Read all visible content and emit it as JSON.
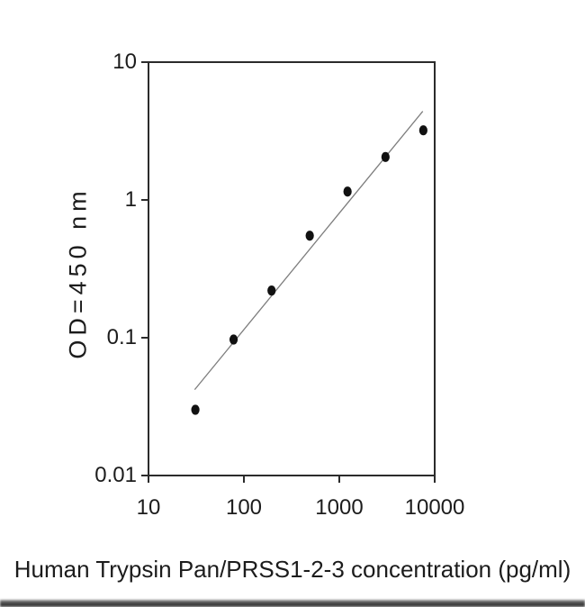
{
  "figure": {
    "background_color": "#ffffff",
    "text_color": "#1c1c1c",
    "axis_color": "#2b2b2b",
    "point_color": "#111111",
    "trend_line_color": "#7d7d7d"
  },
  "chart_data": {
    "type": "scatter",
    "title": "",
    "xlabel": "Human Trypsin Pan/PRSS1-2-3 concentration (pg/ml)",
    "ylabel": "OD=450 nm",
    "x_scale": "log",
    "y_scale": "log",
    "xlim": [
      10,
      10000
    ],
    "ylim": [
      0.01,
      10
    ],
    "x_ticks": [
      10,
      100,
      1000,
      10000
    ],
    "x_tick_labels": [
      "10",
      "100",
      "1000",
      "10000"
    ],
    "y_ticks": [
      0.01,
      0.1,
      1,
      10
    ],
    "y_tick_labels": [
      "0.01",
      "0.1",
      "1",
      "10"
    ],
    "grid": false,
    "legend": null,
    "series": [
      {
        "name": "standard-curve-points",
        "type": "scatter",
        "x": [
          31,
          78,
          195,
          490,
          1220,
          3050,
          7600
        ],
        "y": [
          0.03,
          0.097,
          0.22,
          0.55,
          1.15,
          2.05,
          3.2
        ]
      },
      {
        "name": "fit-line",
        "type": "line",
        "x": [
          30.5,
          7500
        ],
        "y": [
          0.042,
          4.4
        ]
      }
    ]
  }
}
